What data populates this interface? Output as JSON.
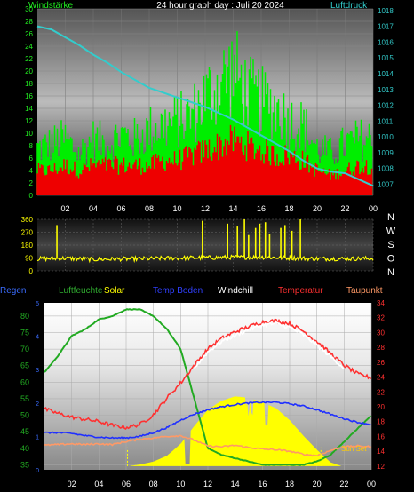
{
  "header": {
    "title": "24 hour graph day : Juli 20 2024",
    "left_label": "Windstärke",
    "right_label": "Luftdruck"
  },
  "compass": [
    "N",
    "W",
    "S",
    "O",
    "N"
  ],
  "legend": [
    {
      "label": "Regen",
      "color": "#3a6cff"
    },
    {
      "label": "Luftfeuchte",
      "color": "#2faa2f"
    },
    {
      "label": "Solar",
      "color": "#ffff00"
    },
    {
      "label": "Temp Boden",
      "color": "#3040ff"
    },
    {
      "label": "Windchill",
      "color": "#ffffff"
    },
    {
      "label": "Temperatur",
      "color": "#ff3030"
    },
    {
      "label": "Taupunkt",
      "color": "#ff9966"
    }
  ],
  "sunset_label": "Sun Set",
  "chart_data": [
    {
      "type": "bar",
      "title": "24 hour graph day : Juli 20 2024",
      "x_ticks": [
        "02",
        "04",
        "06",
        "08",
        "10",
        "12",
        "14",
        "16",
        "18",
        "20",
        "22",
        "00"
      ],
      "y_left": {
        "label": "Windstärke",
        "ticks": [
          0,
          2,
          4,
          6,
          8,
          10,
          12,
          14,
          16,
          18,
          20,
          22,
          24,
          26,
          28,
          30
        ],
        "ylim": [
          0,
          30
        ]
      },
      "y_right": {
        "label": "Luftdruck",
        "ticks": [
          1007,
          1008,
          1009,
          1010,
          1011,
          1012,
          1013,
          1014,
          1015,
          1016,
          1017,
          1018
        ],
        "ylim": [
          1006.3,
          1018.1
        ]
      },
      "series": [
        {
          "name": "gust",
          "color": "#00ee00",
          "envelope": [
            [
              0,
              10
            ],
            [
              1,
              11
            ],
            [
              2,
              12
            ],
            [
              3,
              9
            ],
            [
              4,
              12
            ],
            [
              5,
              11
            ],
            [
              6,
              13
            ],
            [
              7,
              12
            ],
            [
              8,
              14
            ],
            [
              9,
              15
            ],
            [
              10,
              16
            ],
            [
              11,
              17
            ],
            [
              12,
              21
            ],
            [
              13,
              24
            ],
            [
              14,
              27
            ],
            [
              15,
              22
            ],
            [
              16,
              20
            ],
            [
              17,
              19
            ],
            [
              18,
              16
            ],
            [
              19,
              15
            ],
            [
              20,
              10
            ],
            [
              21,
              9
            ],
            [
              22,
              11
            ],
            [
              23,
              12
            ],
            [
              24,
              12
            ]
          ]
        },
        {
          "name": "wind",
          "color": "#ee0000",
          "envelope": [
            [
              0,
              5
            ],
            [
              1,
              5
            ],
            [
              2,
              6
            ],
            [
              3,
              5
            ],
            [
              4,
              6
            ],
            [
              5,
              6
            ],
            [
              6,
              6
            ],
            [
              7,
              6
            ],
            [
              8,
              6
            ],
            [
              9,
              7
            ],
            [
              10,
              7
            ],
            [
              11,
              8
            ],
            [
              12,
              9
            ],
            [
              13,
              10
            ],
            [
              14,
              11
            ],
            [
              15,
              10
            ],
            [
              16,
              9
            ],
            [
              17,
              8
            ],
            [
              18,
              8
            ],
            [
              19,
              7
            ],
            [
              20,
              5
            ],
            [
              21,
              4
            ],
            [
              22,
              5
            ],
            [
              23,
              6
            ],
            [
              24,
              6
            ]
          ]
        },
        {
          "name": "pressure",
          "color": "#33cccc",
          "points": [
            [
              0,
              1017.0
            ],
            [
              1,
              1016.8
            ],
            [
              2,
              1016.3
            ],
            [
              3,
              1015.8
            ],
            [
              4,
              1015.2
            ],
            [
              5,
              1014.7
            ],
            [
              6,
              1014.1
            ],
            [
              7,
              1013.6
            ],
            [
              8,
              1013.1
            ],
            [
              9,
              1012.8
            ],
            [
              10,
              1012.5
            ],
            [
              11,
              1012.2
            ],
            [
              12,
              1011.9
            ],
            [
              13,
              1011.5
            ],
            [
              14,
              1011.1
            ],
            [
              15,
              1010.6
            ],
            [
              16,
              1010.1
            ],
            [
              17,
              1009.6
            ],
            [
              18,
              1009.1
            ],
            [
              19,
              1008.5
            ],
            [
              20,
              1008.0
            ],
            [
              21,
              1007.8
            ],
            [
              22,
              1007.7
            ],
            [
              23,
              1007.3
            ],
            [
              24,
              1006.9
            ]
          ]
        }
      ]
    },
    {
      "type": "scatter",
      "title": "",
      "x_ticks": [
        "02",
        "04",
        "06",
        "08",
        "10",
        "12",
        "14",
        "16",
        "18",
        "20",
        "22",
        "00"
      ],
      "y": {
        "ticks": [
          0,
          90,
          180,
          270,
          360
        ],
        "ylim": [
          0,
          360
        ]
      },
      "series": [
        {
          "name": "wind direction",
          "color": "#ffff00",
          "baseline": [
            [
              0,
              84
            ],
            [
              2,
              88
            ],
            [
              4,
              80
            ],
            [
              6,
              83
            ],
            [
              8,
              85
            ],
            [
              10,
              90
            ],
            [
              12,
              92
            ],
            [
              14,
              95
            ],
            [
              16,
              96
            ],
            [
              18,
              90
            ],
            [
              20,
              85
            ],
            [
              22,
              85
            ],
            [
              24,
              86
            ]
          ],
          "spikes": [
            [
              1.4,
              320
            ],
            [
              11.8,
              350
            ],
            [
              13.6,
              330
            ],
            [
              14.3,
              310
            ],
            [
              14.8,
              360
            ],
            [
              15.1,
              250
            ],
            [
              15.6,
              300
            ],
            [
              15.9,
              330
            ],
            [
              16.3,
              340
            ],
            [
              16.6,
              260
            ],
            [
              17.4,
              300
            ],
            [
              17.7,
              320
            ],
            [
              18.2,
              280
            ],
            [
              18.8,
              360
            ]
          ]
        }
      ]
    },
    {
      "type": "line",
      "title": "",
      "x_ticks": [
        "02",
        "04",
        "06",
        "08",
        "10",
        "12",
        "14",
        "16",
        "18",
        "20",
        "22",
        "00"
      ],
      "y_left": {
        "label": "Luftfeuchte",
        "ticks": [
          35,
          40,
          45,
          50,
          55,
          60,
          65,
          70,
          75,
          80
        ],
        "ylim": [
          33.5,
          84
        ]
      },
      "y_right": {
        "label": "Temperatur",
        "ticks": [
          12,
          14,
          16,
          18,
          20,
          22,
          24,
          26,
          28,
          30,
          32,
          34
        ],
        "ylim": [
          11.5,
          34
        ]
      },
      "series": [
        {
          "name": "Luftfeuchte",
          "axis": "left",
          "color": "#22aa22",
          "points": [
            [
              0,
              63
            ],
            [
              1,
              68
            ],
            [
              2,
              74
            ],
            [
              3,
              76
            ],
            [
              4,
              79
            ],
            [
              5,
              80
            ],
            [
              6,
              82
            ],
            [
              7,
              82
            ],
            [
              8,
              80
            ],
            [
              9,
              76
            ],
            [
              10,
              70
            ],
            [
              11,
              55
            ],
            [
              12,
              40
            ],
            [
              13,
              38
            ],
            [
              14,
              37
            ],
            [
              15,
              36
            ],
            [
              16,
              35
            ],
            [
              17,
              35
            ],
            [
              18,
              35
            ],
            [
              19,
              35
            ],
            [
              20,
              36
            ],
            [
              21,
              38
            ],
            [
              22,
              42
            ],
            [
              23,
              46
            ],
            [
              24,
              50
            ]
          ]
        },
        {
          "name": "Temperatur",
          "axis": "right",
          "color": "#ff3030",
          "points": [
            [
              0,
              19.7
            ],
            [
              1,
              19.1
            ],
            [
              2,
              18.6
            ],
            [
              3,
              18.3
            ],
            [
              4,
              18.0
            ],
            [
              5,
              17.5
            ],
            [
              6,
              17.2
            ],
            [
              7,
              17.6
            ],
            [
              8,
              18.9
            ],
            [
              9,
              21.2
            ],
            [
              10,
              23.2
            ],
            [
              11,
              25.6
            ],
            [
              12,
              27.8
            ],
            [
              13,
              29.2
            ],
            [
              14,
              30.1
            ],
            [
              15,
              30.8
            ],
            [
              16,
              31.4
            ],
            [
              17,
              31.6
            ],
            [
              18,
              31.2
            ],
            [
              19,
              30.2
            ],
            [
              20,
              28.8
            ],
            [
              21,
              27.2
            ],
            [
              22,
              25.6
            ],
            [
              23,
              24.4
            ],
            [
              24,
              23.9
            ]
          ]
        },
        {
          "name": "Windchill",
          "axis": "right",
          "color": "#ffffff",
          "points": [
            [
              11,
              25.2
            ],
            [
              12,
              27.4
            ],
            [
              13,
              28.8
            ],
            [
              14,
              29.6
            ],
            [
              15,
              30.4
            ],
            [
              16,
              31.0
            ],
            [
              17,
              31.2
            ],
            [
              18,
              30.7
            ],
            [
              19,
              29.7
            ],
            [
              20,
              28.3
            ],
            [
              21,
              26.8
            ],
            [
              22,
              25.2
            ]
          ]
        },
        {
          "name": "Temp Boden",
          "axis": "right",
          "color": "#2030ff",
          "points": [
            [
              0,
              16.5
            ],
            [
              1,
              16.5
            ],
            [
              2,
              16.4
            ],
            [
              3,
              16.1
            ],
            [
              4,
              15.9
            ],
            [
              5,
              15.8
            ],
            [
              6,
              15.8
            ],
            [
              7,
              16.0
            ],
            [
              8,
              16.5
            ],
            [
              9,
              17.2
            ],
            [
              10,
              18.2
            ],
            [
              11,
              19.0
            ],
            [
              12,
              19.6
            ],
            [
              13,
              20.0
            ],
            [
              14,
              20.3
            ],
            [
              15,
              20.5
            ],
            [
              16,
              20.6
            ],
            [
              17,
              20.6
            ],
            [
              18,
              20.4
            ],
            [
              19,
              20.1
            ],
            [
              20,
              19.6
            ],
            [
              21,
              19.0
            ],
            [
              22,
              18.4
            ],
            [
              23,
              17.9
            ],
            [
              24,
              17.6
            ]
          ]
        },
        {
          "name": "Taupunkt",
          "axis": "right",
          "color": "#ff9966",
          "points": [
            [
              0,
              14.8
            ],
            [
              1,
              14.9
            ],
            [
              2,
              15.0
            ],
            [
              3,
              14.9
            ],
            [
              4,
              15.0
            ],
            [
              5,
              14.9
            ],
            [
              6,
              15.3
            ],
            [
              7,
              15.6
            ],
            [
              8,
              15.8
            ],
            [
              9,
              16.0
            ],
            [
              10,
              16.1
            ],
            [
              11,
              15.5
            ],
            [
              12,
              14.7
            ],
            [
              13,
              14.6
            ],
            [
              14,
              14.8
            ],
            [
              15,
              14.5
            ],
            [
              16,
              14.3
            ],
            [
              17,
              14.2
            ],
            [
              18,
              14.0
            ],
            [
              19,
              13.6
            ],
            [
              20,
              13.4
            ],
            [
              21,
              14.1
            ],
            [
              22,
              14.6
            ],
            [
              23,
              14.7
            ],
            [
              24,
              14.6
            ]
          ]
        },
        {
          "name": "Solar",
          "axis": "right",
          "color": "#ffff00",
          "area": true,
          "points": [
            [
              6.2,
              12
            ],
            [
              7,
              12.2
            ],
            [
              8,
              12.6
            ],
            [
              9,
              13.4
            ],
            [
              10,
              15.0
            ],
            [
              11,
              17.4
            ],
            [
              12,
              19.6
            ],
            [
              13,
              20.8
            ],
            [
              14,
              21.4
            ],
            [
              15,
              21.2
            ],
            [
              16,
              20.6
            ],
            [
              17,
              19.8
            ],
            [
              18,
              18.2
            ],
            [
              19,
              16.1
            ],
            [
              20,
              14.2
            ],
            [
              21,
              12.5
            ],
            [
              21.8,
              12
            ]
          ]
        }
      ]
    }
  ]
}
